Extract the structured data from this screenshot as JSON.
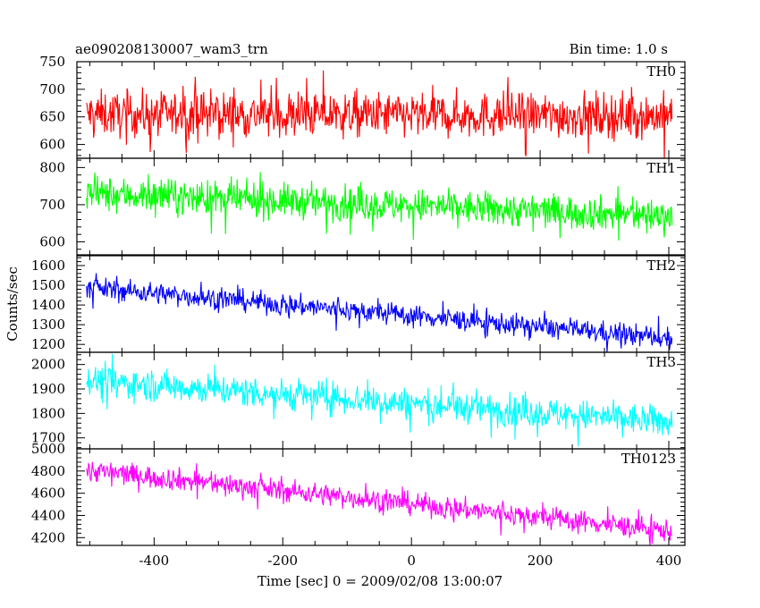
{
  "header": {
    "left_title": "ae090208130007_wam3_trn",
    "right_title": "Bin time: 1.0 s"
  },
  "axes": {
    "ylabel": "Counts/sec",
    "xlabel": "Time [sec] 0 = 2009/02/08 13:00:07",
    "xlim": [
      -520,
      425
    ],
    "xticks": [
      -400,
      -200,
      0,
      200,
      400
    ]
  },
  "chart_data": [
    {
      "type": "line",
      "name": "TH0",
      "color": "#ff0000",
      "ylim": [
        575,
        750
      ],
      "yticks": [
        600,
        650,
        700,
        750
      ],
      "x_range": [
        -505,
        405
      ],
      "trend": [
        [
          -505,
          655
        ],
        [
          405,
          652
        ]
      ],
      "noise_amplitude": 45
    },
    {
      "type": "line",
      "name": "TH1",
      "color": "#00ff00",
      "ylim": [
        565,
        825
      ],
      "yticks": [
        600,
        700,
        800
      ],
      "x_range": [
        -505,
        405
      ],
      "trend": [
        [
          -505,
          730
        ],
        [
          405,
          670
        ]
      ],
      "noise_amplitude": 50
    },
    {
      "type": "line",
      "name": "TH2",
      "color": "#0000ff",
      "ylim": [
        1160,
        1650
      ],
      "yticks": [
        1200,
        1300,
        1400,
        1500,
        1600
      ],
      "x_range": [
        -505,
        405
      ],
      "trend": [
        [
          -505,
          1490
        ],
        [
          405,
          1230
        ]
      ],
      "noise_amplitude": 60
    },
    {
      "type": "line",
      "name": "TH3",
      "color": "#00ffff",
      "ylim": [
        1655,
        2050
      ],
      "yticks": [
        1700,
        1800,
        1900,
        2000
      ],
      "x_range": [
        -505,
        405
      ],
      "trend": [
        [
          -505,
          1935
        ],
        [
          405,
          1765
        ]
      ],
      "noise_amplitude": 70
    },
    {
      "type": "line",
      "name": "TH0123",
      "color": "#ff00ff",
      "ylim": [
        4130,
        5000
      ],
      "yticks": [
        4200,
        4400,
        4600,
        4800,
        5000
      ],
      "x_range": [
        -505,
        405
      ],
      "trend": [
        [
          -505,
          4810
        ],
        [
          405,
          4260
        ]
      ],
      "noise_amplitude": 110
    }
  ]
}
